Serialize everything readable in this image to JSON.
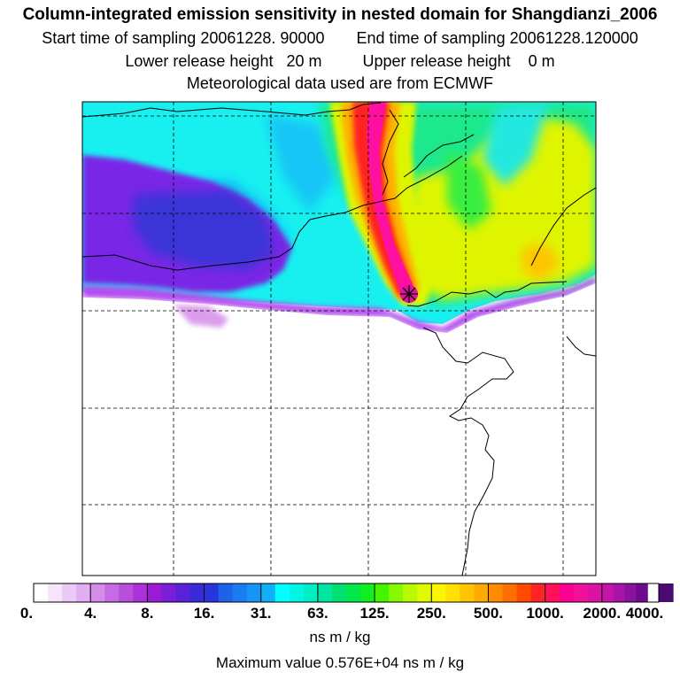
{
  "header": {
    "title": "Column-integrated emission sensitivity in nested domain for Shangdianzi_2006",
    "start_label": "Start time of sampling 20061228. 90000",
    "end_label": "End time of sampling 20061228.120000",
    "lower_label": "Lower release height   20 m",
    "upper_label": "Upper release height    0 m",
    "met_label": "Meteorological data used are from ECMWF"
  },
  "legend": {
    "ticks": [
      "0.",
      "4.",
      "8.",
      "16.",
      "31.",
      "63.",
      "125.",
      "250.",
      "500.",
      "1000.",
      "2000.",
      "4000."
    ],
    "unit": "ns m / kg",
    "swatches": [
      "#ffffff",
      "#f6e4fb",
      "#eccaf7",
      "#e2adf3",
      "#d58de9",
      "#c66be3",
      "#b94edd",
      "#ab32d8",
      "#9b1bd4",
      "#7a1ed8",
      "#5a22d8",
      "#3b2ad8",
      "#2736dc",
      "#1e62ea",
      "#1a7cf0",
      "#1695f5",
      "#12aef8",
      "#00ffff",
      "#00f6e4",
      "#00eec4",
      "#00e6a0",
      "#00e070",
      "#00e84a",
      "#10ef20",
      "#46f400",
      "#86f800",
      "#bafa00",
      "#e0fb00",
      "#fbf600",
      "#ffe000",
      "#ffc400",
      "#ffaa00",
      "#ff8c00",
      "#ff6e00",
      "#ff4a00",
      "#ff2424",
      "#ff1258",
      "#ff0090",
      "#f0109c",
      "#dc12a4",
      "#c614a8",
      "#a814a8",
      "#8a129e",
      "#6c0c8c",
      "#4a0a70"
    ]
  },
  "footer": {
    "max_value": "Maximum value  0.576E+04 ns m / kg"
  },
  "map": {
    "receptor_name": "Shangdianzi",
    "colors": {
      "purple": "#7a28e6",
      "blue": "#2a5ce6",
      "cyan": "#18f0f0",
      "green": "#1ce88c",
      "yellow": "#dff500",
      "orange": "#ffb000",
      "red": "#ff2424",
      "magenta": "#ff10a0"
    }
  }
}
